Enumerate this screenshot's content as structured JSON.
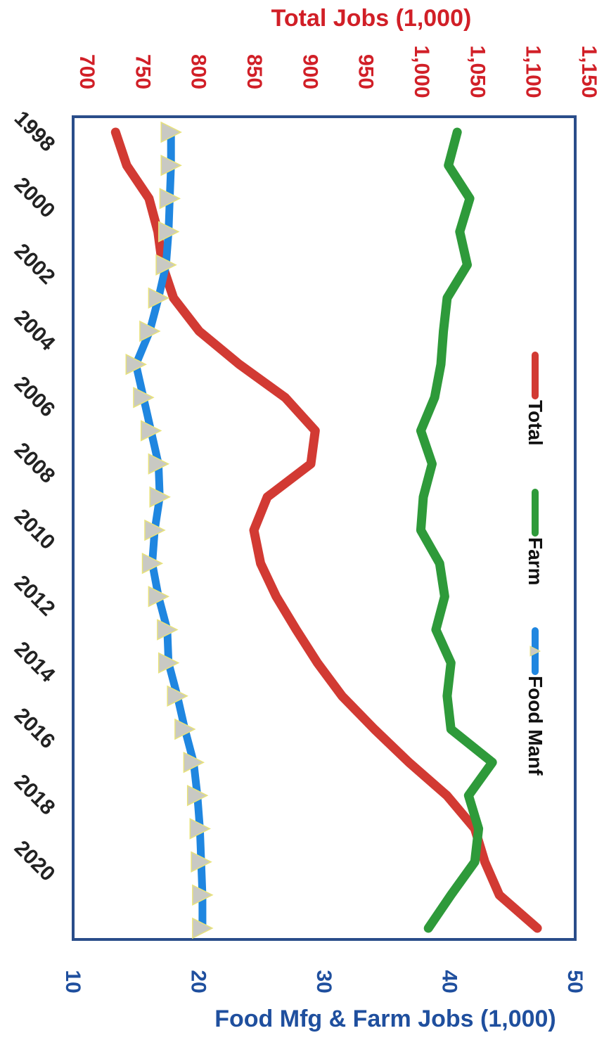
{
  "colors": {
    "total": "#d23a33",
    "farm": "#2e9a3a",
    "food": "#1f86e0",
    "food_marker": "#c9c9c3",
    "left_axis": "#d11f27",
    "right_axis": "#1f4f9e",
    "frame": "#2a4d8a",
    "year_label": "#222222"
  },
  "chart_data": {
    "type": "line",
    "orientation": "rotated 90 degrees clockwise",
    "x": [
      1998,
      1999,
      2000,
      2001,
      2002,
      2003,
      2004,
      2005,
      2006,
      2007,
      2008,
      2009,
      2010,
      2011,
      2012,
      2013,
      2014,
      2015,
      2016,
      2017,
      2018,
      2019,
      2020,
      2021,
      2022
    ],
    "x_ticks": [
      "1998",
      "2000",
      "2002",
      "2004",
      "2006",
      "2008",
      "2010",
      "2012",
      "2014",
      "2016",
      "2018",
      "2020"
    ],
    "xlim": [
      1998,
      2022
    ],
    "y_left": {
      "label": "Total  Jobs (1,000)",
      "ticks": [
        "700",
        "750",
        "800",
        "850",
        "900",
        "950",
        "1,000",
        "1,050",
        "1,100",
        "1,150"
      ],
      "lim": [
        700,
        1150
      ]
    },
    "y_right": {
      "label": "Food Mfg & Farm Jobs (1,000)",
      "ticks": [
        "10",
        "20",
        "30",
        "40",
        "50"
      ],
      "lim": [
        10,
        50
      ]
    },
    "series": [
      {
        "name": "Total",
        "axis": "left",
        "values": [
          738,
          748,
          768,
          776,
          780,
          790,
          813,
          849,
          890,
          917,
          913,
          874,
          862,
          868,
          882,
          900,
          919,
          941,
          970,
          1001,
          1035,
          1060,
          1069,
          1082,
          1116
        ]
      },
      {
        "name": "Farm",
        "axis": "right",
        "values": [
          40.6,
          39.9,
          41.6,
          40.8,
          41.4,
          39.8,
          39.5,
          39.3,
          38.8,
          37.7,
          38.6,
          37.9,
          37.7,
          39.2,
          39.6,
          38.9,
          40.1,
          39.8,
          40.1,
          43.4,
          41.5,
          42.3,
          42.0,
          40.1,
          38.3
        ]
      },
      {
        "name": "Food Manf",
        "axis": "right",
        "values": [
          17.8,
          17.8,
          17.7,
          17.6,
          17.4,
          16.8,
          16.1,
          15.0,
          15.6,
          16.2,
          16.8,
          16.9,
          16.5,
          16.3,
          16.8,
          17.5,
          17.6,
          18.3,
          18.9,
          19.6,
          19.9,
          20.1,
          20.2,
          20.3,
          20.3
        ]
      }
    ],
    "legend": {
      "placement": "right",
      "items": [
        "Total",
        "Farm",
        "Food Manf"
      ]
    }
  }
}
